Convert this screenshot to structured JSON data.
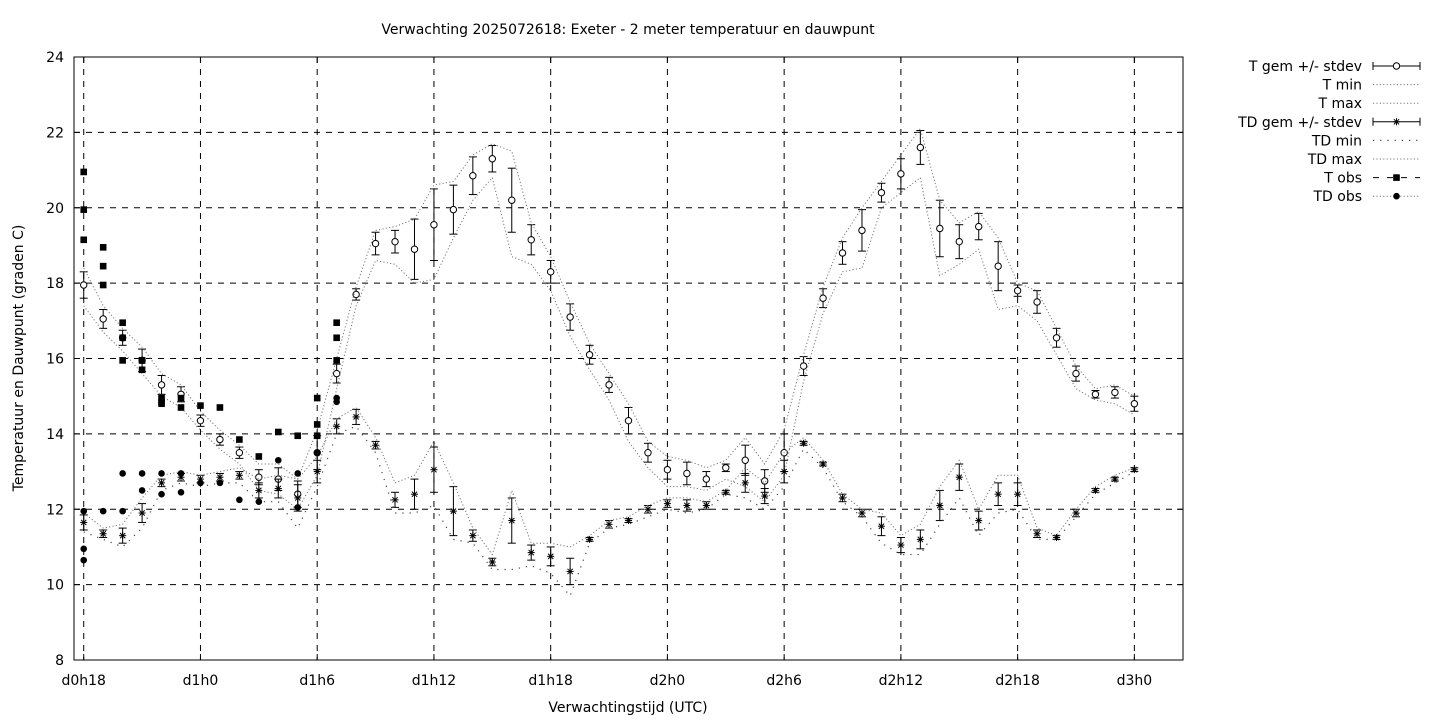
{
  "chart_data": {
    "type": "line",
    "title": "Verwachting 2025072618: Exeter - 2 meter temperatuur en dauwpunt",
    "xlabel": "Verwachtingstijd (UTC)",
    "ylabel": "Temperatuur en Dauwpunt (graden C)",
    "xlim": [
      -0.5,
      56.5
    ],
    "ylim": [
      8,
      24
    ],
    "x_ticks": [
      {
        "x": 0,
        "label": "d0h18"
      },
      {
        "x": 6,
        "label": "d1h0"
      },
      {
        "x": 12,
        "label": "d1h6"
      },
      {
        "x": 18,
        "label": "d1h12"
      },
      {
        "x": 24,
        "label": "d1h18"
      },
      {
        "x": 30,
        "label": "d2h0"
      },
      {
        "x": 36,
        "label": "d2h6"
      },
      {
        "x": 42,
        "label": "d2h12"
      },
      {
        "x": 48,
        "label": "d2h18"
      },
      {
        "x": 54,
        "label": "d3h0"
      }
    ],
    "y_ticks": [
      8,
      10,
      12,
      14,
      16,
      18,
      20,
      22,
      24
    ],
    "grid": true,
    "legend_position": "outside-top-right",
    "series": [
      {
        "name": "T gem +/- stdev",
        "style": "errorbar-open-circle",
        "x": [
          0,
          1,
          2,
          3,
          4,
          5,
          6,
          7,
          8,
          9,
          10,
          11,
          12,
          13,
          14,
          15,
          16,
          17,
          18,
          19,
          20,
          21,
          22,
          23,
          24,
          25,
          26,
          27,
          28,
          29,
          30,
          31,
          32,
          33,
          34,
          35,
          36,
          37,
          38,
          39,
          40,
          41,
          42,
          43,
          44,
          45,
          46,
          47,
          48,
          49,
          50,
          51,
          52,
          53,
          54
        ],
        "mean": [
          17.95,
          17.05,
          16.55,
          15.95,
          15.3,
          15.05,
          14.35,
          13.85,
          13.5,
          12.85,
          12.8,
          12.4,
          13.5,
          15.6,
          17.7,
          19.05,
          19.1,
          18.9,
          19.55,
          19.95,
          20.85,
          21.3,
          20.2,
          19.15,
          18.3,
          17.1,
          16.1,
          15.3,
          14.35,
          13.5,
          13.05,
          12.95,
          12.8,
          13.1,
          13.3,
          12.75,
          13.5,
          15.8,
          17.6,
          18.8,
          19.4,
          20.4,
          20.9,
          21.6,
          19.45,
          19.1,
          19.5,
          18.45,
          17.8,
          17.5,
          16.55,
          15.6,
          15.05,
          15.1,
          14.8
        ],
        "stdev": [
          0.35,
          0.25,
          0.2,
          0.3,
          0.25,
          0.2,
          0.15,
          0.15,
          0.15,
          0.2,
          0.3,
          0.35,
          0.45,
          0.25,
          0.15,
          0.3,
          0.3,
          0.8,
          0.95,
          0.65,
          0.5,
          0.35,
          0.85,
          0.4,
          0.3,
          0.35,
          0.25,
          0.2,
          0.35,
          0.25,
          0.25,
          0.3,
          0.2,
          0.1,
          0.4,
          0.3,
          0.5,
          0.25,
          0.25,
          0.3,
          0.55,
          0.25,
          0.4,
          0.45,
          0.75,
          0.45,
          0.35,
          0.65,
          0.15,
          0.3,
          0.25,
          0.2,
          0.1,
          0.15,
          0.2
        ]
      },
      {
        "name": "T min",
        "style": "dotted",
        "x": [
          0,
          1,
          2,
          3,
          4,
          5,
          6,
          7,
          8,
          9,
          10,
          11,
          12,
          13,
          14,
          15,
          16,
          17,
          18,
          19,
          20,
          21,
          22,
          23,
          24,
          25,
          26,
          27,
          28,
          29,
          30,
          31,
          32,
          33,
          34,
          35,
          36,
          37,
          38,
          39,
          40,
          41,
          42,
          43,
          44,
          45,
          46,
          47,
          48,
          49,
          50,
          51,
          52,
          53,
          54
        ],
        "values": [
          17.4,
          16.7,
          16.2,
          15.6,
          15.0,
          14.7,
          14.1,
          13.6,
          13.2,
          12.5,
          12.4,
          12.0,
          12.9,
          15.2,
          17.4,
          18.6,
          18.5,
          18.0,
          18.1,
          19.2,
          20.2,
          20.8,
          18.7,
          18.5,
          17.8,
          16.6,
          15.7,
          14.9,
          13.8,
          13.1,
          12.6,
          12.6,
          12.5,
          12.8,
          12.6,
          12.2,
          12.9,
          15.4,
          17.2,
          18.3,
          18.4,
          20.0,
          20.4,
          20.8,
          18.2,
          18.5,
          18.9,
          17.3,
          17.4,
          17.0,
          16.1,
          15.2,
          14.9,
          14.8,
          14.5
        ]
      },
      {
        "name": "T max",
        "style": "dotted",
        "x": [
          0,
          1,
          2,
          3,
          4,
          5,
          6,
          7,
          8,
          9,
          10,
          11,
          12,
          13,
          14,
          15,
          16,
          17,
          18,
          19,
          20,
          21,
          22,
          23,
          24,
          25,
          26,
          27,
          28,
          29,
          30,
          31,
          32,
          33,
          34,
          35,
          36,
          37,
          38,
          39,
          40,
          41,
          42,
          43,
          44,
          45,
          46,
          47,
          48,
          49,
          50,
          51,
          52,
          53,
          54
        ],
        "values": [
          18.4,
          17.4,
          16.8,
          16.3,
          15.6,
          15.3,
          14.6,
          14.1,
          13.7,
          13.2,
          13.2,
          12.8,
          14.1,
          16.0,
          17.9,
          19.4,
          19.5,
          19.7,
          20.6,
          20.7,
          21.4,
          21.7,
          21.5,
          19.6,
          18.7,
          17.5,
          16.4,
          15.6,
          14.8,
          13.8,
          13.4,
          13.3,
          13.1,
          13.3,
          13.9,
          13.2,
          14.1,
          16.1,
          17.9,
          19.2,
          20.0,
          20.7,
          21.4,
          22.1,
          20.2,
          19.6,
          19.9,
          19.2,
          18.0,
          17.8,
          16.8,
          15.8,
          15.2,
          15.3,
          15.0
        ]
      },
      {
        "name": "TD gem +/- stdev",
        "style": "errorbar-star",
        "x": [
          0,
          1,
          2,
          3,
          4,
          5,
          6,
          7,
          8,
          9,
          10,
          11,
          12,
          13,
          14,
          15,
          16,
          17,
          18,
          19,
          20,
          21,
          22,
          23,
          24,
          25,
          26,
          27,
          28,
          29,
          30,
          31,
          32,
          33,
          34,
          35,
          36,
          37,
          38,
          39,
          40,
          41,
          42,
          43,
          44,
          45,
          46,
          47,
          48,
          49,
          50,
          51,
          52,
          53,
          54
        ],
        "mean": [
          11.65,
          11.35,
          11.3,
          11.9,
          12.7,
          12.85,
          12.8,
          12.85,
          12.9,
          12.5,
          12.55,
          12.3,
          13.0,
          14.2,
          14.45,
          13.7,
          12.25,
          12.4,
          13.05,
          11.95,
          11.3,
          10.6,
          11.7,
          10.85,
          10.75,
          10.35,
          11.2,
          11.6,
          11.7,
          12.0,
          12.15,
          12.1,
          12.1,
          12.45,
          12.7,
          12.35,
          13.0,
          13.75,
          13.2,
          12.3,
          11.9,
          11.55,
          11.05,
          11.2,
          12.1,
          12.85,
          11.7,
          12.4,
          12.4,
          11.35,
          11.25,
          11.9,
          12.5,
          12.8,
          13.05
        ],
        "stdev": [
          0.2,
          0.1,
          0.2,
          0.25,
          0.1,
          0.1,
          0.1,
          0.1,
          0.1,
          0.2,
          0.25,
          0.35,
          0.3,
          0.2,
          0.2,
          0.1,
          0.2,
          0.4,
          0.6,
          0.65,
          0.15,
          0.1,
          0.6,
          0.2,
          0.25,
          0.35,
          0.05,
          0.1,
          0.05,
          0.1,
          0.1,
          0.15,
          0.1,
          0.05,
          0.25,
          0.2,
          0.3,
          0.05,
          0.05,
          0.1,
          0.1,
          0.25,
          0.2,
          0.25,
          0.4,
          0.35,
          0.25,
          0.3,
          0.3,
          0.1,
          0.05,
          0.1,
          0.05,
          0.05,
          0.05
        ]
      },
      {
        "name": "TD min",
        "style": "sparse-dotted",
        "x": [
          0,
          1,
          2,
          3,
          4,
          5,
          6,
          7,
          8,
          9,
          10,
          11,
          12,
          13,
          14,
          15,
          16,
          17,
          18,
          19,
          20,
          21,
          22,
          23,
          24,
          25,
          26,
          27,
          28,
          29,
          30,
          31,
          32,
          33,
          34,
          35,
          36,
          37,
          38,
          39,
          40,
          41,
          42,
          43,
          44,
          45,
          46,
          47,
          48,
          49,
          50,
          51,
          52,
          53,
          54
        ],
        "values": [
          11.4,
          11.2,
          11.0,
          11.5,
          12.5,
          12.7,
          12.6,
          12.7,
          12.7,
          12.2,
          12.2,
          11.5,
          12.6,
          14.0,
          14.2,
          13.5,
          11.9,
          11.9,
          12.1,
          11.2,
          11.1,
          10.4,
          10.4,
          10.5,
          10.3,
          9.7,
          11.1,
          11.5,
          11.6,
          11.8,
          12.0,
          11.9,
          12.0,
          12.4,
          12.3,
          12.0,
          12.6,
          13.6,
          13.1,
          12.2,
          11.8,
          11.1,
          10.8,
          10.8,
          11.6,
          12.3,
          11.3,
          11.9,
          12.0,
          11.2,
          11.2,
          11.8,
          12.4,
          12.7,
          13.0
        ]
      },
      {
        "name": "TD max",
        "style": "dotted",
        "x": [
          0,
          1,
          2,
          3,
          4,
          5,
          6,
          7,
          8,
          9,
          10,
          11,
          12,
          13,
          14,
          15,
          16,
          17,
          18,
          19,
          20,
          21,
          22,
          23,
          24,
          25,
          26,
          27,
          28,
          29,
          30,
          31,
          32,
          33,
          34,
          35,
          36,
          37,
          38,
          39,
          40,
          41,
          42,
          43,
          44,
          45,
          46,
          47,
          48,
          49,
          50,
          51,
          52,
          53,
          54
        ],
        "values": [
          11.9,
          11.5,
          11.6,
          12.3,
          12.9,
          13.0,
          12.9,
          13.0,
          13.1,
          12.8,
          12.9,
          12.8,
          13.4,
          14.4,
          14.7,
          13.9,
          12.7,
          12.9,
          13.8,
          12.7,
          11.5,
          10.8,
          12.5,
          11.1,
          11.1,
          11.0,
          11.3,
          11.7,
          11.8,
          12.1,
          12.3,
          12.3,
          12.2,
          12.5,
          13.1,
          12.7,
          13.5,
          13.9,
          13.3,
          12.4,
          12.0,
          11.9,
          11.3,
          11.6,
          12.6,
          13.3,
          12.0,
          12.9,
          12.9,
          11.5,
          11.3,
          12.0,
          12.6,
          12.9,
          13.1
        ]
      },
      {
        "name": "T obs",
        "style": "filled-square",
        "x": [
          0,
          0,
          0,
          1,
          1,
          1,
          2,
          2,
          2,
          3,
          3,
          3,
          4,
          4,
          4,
          5,
          5,
          6,
          7,
          8,
          9,
          10,
          11,
          12,
          12,
          12,
          13,
          13,
          13
        ],
        "values": [
          20.95,
          19.95,
          19.15,
          18.95,
          18.45,
          17.95,
          16.95,
          16.55,
          15.95,
          15.95,
          15.7,
          15.95,
          14.95,
          14.8,
          14.85,
          14.95,
          14.7,
          14.75,
          14.7,
          13.85,
          13.4,
          14.05,
          13.95,
          14.95,
          14.25,
          13.95,
          16.95,
          16.55,
          15.95
        ],
        "colour": "#000000"
      },
      {
        "name": "TD obs",
        "style": "filled-circle",
        "x": [
          0,
          0,
          0,
          1,
          2,
          2,
          3,
          3,
          4,
          4,
          5,
          5,
          6,
          7,
          8,
          9,
          10,
          11,
          11,
          12,
          12,
          13,
          13
        ],
        "values": [
          11.95,
          10.95,
          10.65,
          11.95,
          12.95,
          11.95,
          12.95,
          12.5,
          12.95,
          12.4,
          12.95,
          12.45,
          12.7,
          12.7,
          12.25,
          12.2,
          13.3,
          12.95,
          12.05,
          13.5,
          13.95,
          14.95,
          14.85
        ],
        "colour": "#000000"
      }
    ]
  }
}
